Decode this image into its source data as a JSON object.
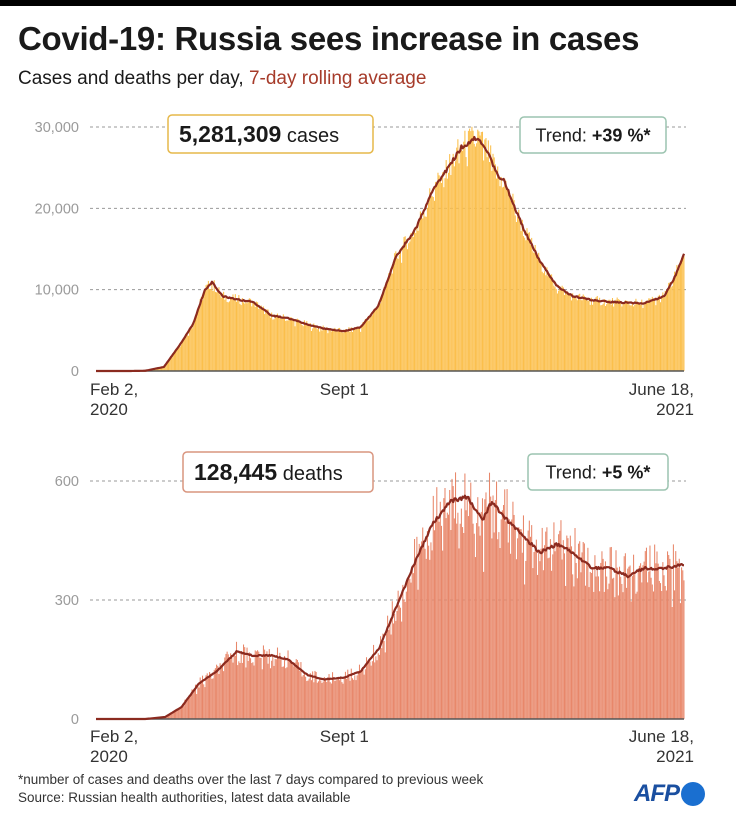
{
  "header": {
    "title": "Covid-19: Russia sees increase in cases",
    "subtitle_main": "Cases and deaths per day, ",
    "subtitle_accent": "7-day rolling average"
  },
  "footer": {
    "note": "*number of cases and deaths over the last 7 days compared to previous week",
    "source": "Source: Russian health authorities, latest data available",
    "logo": "AFP"
  },
  "colors": {
    "cases_bars": "#fbbf4b",
    "deaths_bars": "#e8876a",
    "rolling_line": "#8b2a1f",
    "accent_text": "#a63b2a",
    "cases_box_border": "#e6b84a",
    "deaths_box_border": "#d9957f",
    "trend_box_border": "#9cc4b0",
    "logo_blue": "#1a4fa0"
  },
  "chart_data": [
    {
      "type": "bar",
      "id": "cases",
      "title": "",
      "total_value": "5,281,309",
      "total_label": "cases",
      "trend_label": "Trend: ",
      "trend_value": "+39 %*",
      "ylim": [
        0,
        30000
      ],
      "yticks": [
        {
          "value": 0,
          "label": "0"
        },
        {
          "value": 10000,
          "label": "10,000"
        },
        {
          "value": 20000,
          "label": "20,000"
        },
        {
          "value": 30000,
          "label": "30,000"
        }
      ],
      "xticks": [
        {
          "date": "2020-02-02",
          "line1": "Feb 2,",
          "line2": "2020",
          "align": "start"
        },
        {
          "date": "2020-09-01",
          "line1": "Sept 1",
          "line2": "",
          "align": "middle"
        },
        {
          "date": "2021-06-18",
          "line1": "June 18,",
          "line2": "2021",
          "align": "end"
        }
      ],
      "grid": true,
      "series": [
        {
          "name": "7-day rolling average",
          "type": "line",
          "points": [
            [
              "2020-02-02",
              0
            ],
            [
              "2020-03-01",
              0
            ],
            [
              "2020-03-15",
              30
            ],
            [
              "2020-03-31",
              500
            ],
            [
              "2020-04-15",
              3500
            ],
            [
              "2020-04-25",
              5800
            ],
            [
              "2020-05-05",
              10000
            ],
            [
              "2020-05-11",
              10900
            ],
            [
              "2020-05-20",
              9200
            ],
            [
              "2020-06-01",
              8800
            ],
            [
              "2020-06-15",
              8500
            ],
            [
              "2020-07-01",
              6800
            ],
            [
              "2020-07-15",
              6500
            ],
            [
              "2020-08-01",
              5700
            ],
            [
              "2020-08-15",
              5200
            ],
            [
              "2020-09-01",
              4900
            ],
            [
              "2020-09-15",
              5400
            ],
            [
              "2020-09-30",
              8000
            ],
            [
              "2020-10-15",
              14000
            ],
            [
              "2020-11-01",
              17500
            ],
            [
              "2020-11-15",
              22000
            ],
            [
              "2020-12-01",
              25500
            ],
            [
              "2020-12-10",
              27500
            ],
            [
              "2020-12-24",
              28800
            ],
            [
              "2021-01-01",
              27000
            ],
            [
              "2021-01-10",
              24000
            ],
            [
              "2021-01-15",
              23500
            ],
            [
              "2021-02-01",
              17500
            ],
            [
              "2021-02-15",
              13500
            ],
            [
              "2021-03-01",
              10500
            ],
            [
              "2021-03-15",
              9200
            ],
            [
              "2021-04-01",
              8700
            ],
            [
              "2021-04-15",
              8500
            ],
            [
              "2021-05-01",
              8400
            ],
            [
              "2021-05-15",
              8300
            ],
            [
              "2021-06-01",
              9200
            ],
            [
              "2021-06-10",
              11500
            ],
            [
              "2021-06-18",
              14400
            ]
          ]
        }
      ]
    },
    {
      "type": "bar",
      "id": "deaths",
      "title": "",
      "total_value": "128,445",
      "total_label": "deaths",
      "trend_label": "Trend: ",
      "trend_value": "+5 %*",
      "ylim": [
        0,
        600
      ],
      "yticks": [
        {
          "value": 0,
          "label": "0"
        },
        {
          "value": 300,
          "label": "300"
        },
        {
          "value": 600,
          "label": "600"
        }
      ],
      "xticks": [
        {
          "date": "2020-02-02",
          "line1": "Feb 2,",
          "line2": "2020",
          "align": "start"
        },
        {
          "date": "2020-09-01",
          "line1": "Sept 1",
          "line2": "",
          "align": "middle"
        },
        {
          "date": "2021-06-18",
          "line1": "June 18,",
          "line2": "2021",
          "align": "end"
        }
      ],
      "grid": true,
      "series": [
        {
          "name": "7-day rolling average",
          "type": "line",
          "points": [
            [
              "2020-02-02",
              0
            ],
            [
              "2020-03-15",
              0
            ],
            [
              "2020-04-01",
              5
            ],
            [
              "2020-04-15",
              30
            ],
            [
              "2020-04-30",
              90
            ],
            [
              "2020-05-15",
              120
            ],
            [
              "2020-06-01",
              170
            ],
            [
              "2020-06-15",
              160
            ],
            [
              "2020-07-01",
              160
            ],
            [
              "2020-07-15",
              150
            ],
            [
              "2020-08-01",
              110
            ],
            [
              "2020-08-15",
              100
            ],
            [
              "2020-09-01",
              105
            ],
            [
              "2020-09-15",
              120
            ],
            [
              "2020-10-01",
              180
            ],
            [
              "2020-10-15",
              280
            ],
            [
              "2020-11-01",
              400
            ],
            [
              "2020-11-15",
              490
            ],
            [
              "2020-12-01",
              550
            ],
            [
              "2020-12-15",
              560
            ],
            [
              "2020-12-28",
              500
            ],
            [
              "2021-01-05",
              550
            ],
            [
              "2021-01-15",
              510
            ],
            [
              "2021-02-01",
              460
            ],
            [
              "2021-02-15",
              420
            ],
            [
              "2021-03-01",
              440
            ],
            [
              "2021-03-15",
              420
            ],
            [
              "2021-04-01",
              380
            ],
            [
              "2021-04-15",
              380
            ],
            [
              "2021-05-01",
              360
            ],
            [
              "2021-05-15",
              380
            ],
            [
              "2021-06-01",
              380
            ],
            [
              "2021-06-18",
              390
            ]
          ]
        }
      ]
    }
  ]
}
